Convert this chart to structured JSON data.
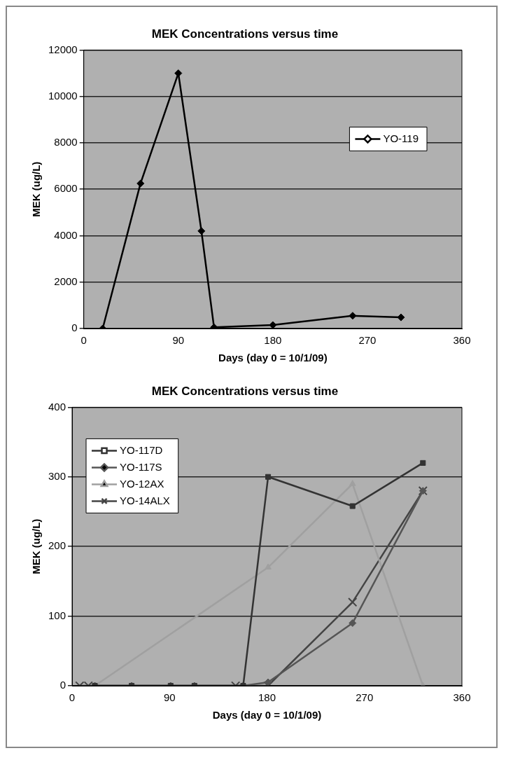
{
  "chart_data": [
    {
      "type": "line",
      "title": "MEK Concentrations versus time",
      "xlabel": "Days (day 0 = 10/1/09)",
      "ylabel": "MEK (ug/L)",
      "xlim": [
        0,
        360
      ],
      "xticks": [
        0,
        90,
        180,
        270,
        360
      ],
      "ylim": [
        0,
        12000
      ],
      "yticks": [
        0,
        2000,
        4000,
        6000,
        8000,
        10000,
        12000
      ],
      "grid": "y",
      "legend": "top right",
      "marker": "diamond",
      "series": [
        {
          "name": "YO-119",
          "color": "#000000",
          "x": [
            18,
            54,
            90,
            112,
            124,
            180,
            256,
            302
          ],
          "values": [
            0,
            6250,
            11000,
            4200,
            50,
            150,
            550,
            480
          ]
        }
      ]
    },
    {
      "type": "line",
      "title": "MEK Concentrations versus time",
      "xlabel": "Days (day 0 = 10/1/09)",
      "ylabel": "MEK (ug/L)",
      "xlim": [
        0,
        360
      ],
      "xticks": [
        0,
        90,
        180,
        270,
        360
      ],
      "ylim": [
        0,
        400
      ],
      "yticks": [
        0,
        100,
        200,
        300,
        400
      ],
      "grid": "y",
      "legend": "top left",
      "series": [
        {
          "name": "YO-117D",
          "color": "#333333",
          "marker": "square",
          "x": [
            21,
            55,
            91,
            113,
            158,
            181,
            259,
            324
          ],
          "values": [
            0,
            0,
            0,
            0,
            0,
            300,
            258,
            320
          ]
        },
        {
          "name": "YO-117S",
          "color": "#555555",
          "marker": "diamond",
          "x": [
            21,
            55,
            91,
            113,
            158,
            181,
            259,
            324
          ],
          "values": [
            0,
            0,
            0,
            0,
            0,
            5,
            90,
            280
          ]
        },
        {
          "name": "YO-12AX",
          "color": "#a0a0a0",
          "marker": "triangle",
          "x": [
            21,
            181,
            259,
            324
          ],
          "values": [
            0,
            170,
            290,
            0
          ]
        },
        {
          "name": "YO-14ALX",
          "color": "#444444",
          "marker": "cross",
          "x": [
            7,
            15,
            151,
            181,
            259,
            324
          ],
          "values": [
            0,
            0,
            0,
            0,
            120,
            280
          ]
        }
      ]
    }
  ]
}
